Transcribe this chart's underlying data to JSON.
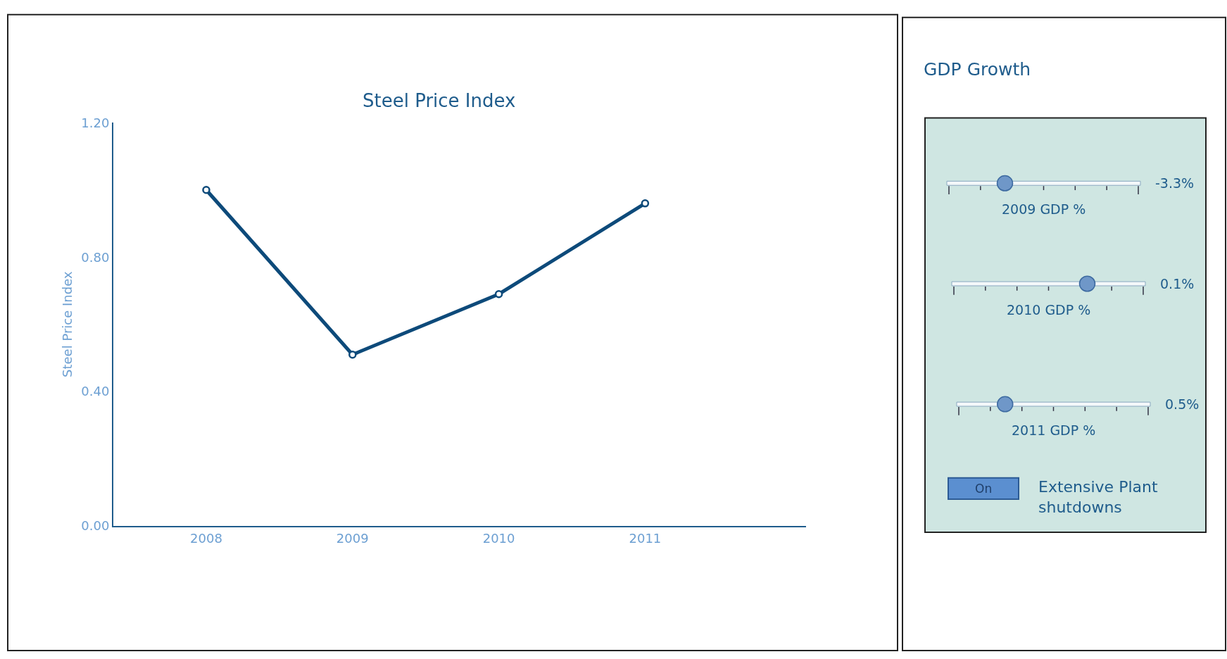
{
  "chart_data": [
    {
      "type": "line",
      "title": "Steel Price Index",
      "ylabel": "Steel Price Index",
      "categories": [
        "2008",
        "2009",
        "2010",
        "2011"
      ],
      "series": [
        {
          "color": "#0d4a7a",
          "values": [
            1.0,
            0.51,
            0.69,
            0.96
          ]
        }
      ],
      "ylim": [
        0,
        1.2
      ],
      "yticks": [
        {
          "value": 0,
          "label": "0.00"
        },
        {
          "value": 0.4,
          "label": "0.40"
        },
        {
          "value": 0.8,
          "label": "0.80"
        },
        {
          "value": 1.2,
          "label": "1.20"
        }
      ],
      "marker": "circle",
      "line_style": "solid"
    },
    {
      "type": "other",
      "title": "GDP Growth",
      "annotations": [
        "-3.3%",
        "2009 GDP %",
        "0.1%",
        "2010 GDP %",
        "0.5%",
        "2011 GDP %",
        "On",
        "Extensive Plant shutdowns"
      ]
    }
  ]
}
